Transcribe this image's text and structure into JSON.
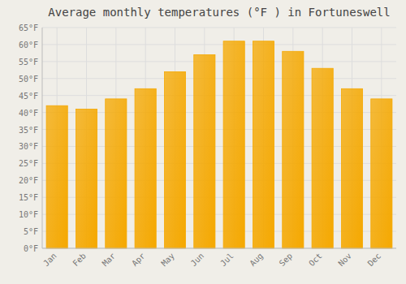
{
  "chart_data": {
    "type": "bar",
    "title": "Average monthly temperatures (°F ) in Fortuneswell",
    "categories": [
      "Jan",
      "Feb",
      "Mar",
      "Apr",
      "May",
      "Jun",
      "Jul",
      "Aug",
      "Sep",
      "Oct",
      "Nov",
      "Dec"
    ],
    "values": [
      42,
      41,
      44,
      47,
      52,
      57,
      61,
      61,
      58,
      53,
      47,
      44
    ],
    "color": "#F5A800",
    "ylim": [
      0,
      65
    ],
    "yticks": [
      {
        "value": 0,
        "label": "0°F"
      },
      {
        "value": 5,
        "label": "5°F"
      },
      {
        "value": 10,
        "label": "10°F"
      },
      {
        "value": 15,
        "label": "15°F"
      },
      {
        "value": 20,
        "label": "20°F"
      },
      {
        "value": 25,
        "label": "25°F"
      },
      {
        "value": 30,
        "label": "30°F"
      },
      {
        "value": 35,
        "label": "35°F"
      },
      {
        "value": 40,
        "label": "40°F"
      },
      {
        "value": 45,
        "label": "45°F"
      },
      {
        "value": 50,
        "label": "50°F"
      },
      {
        "value": 55,
        "label": "55°F"
      },
      {
        "value": 60,
        "label": "60°F"
      },
      {
        "value": 65,
        "label": "65°F"
      }
    ],
    "grid": true
  }
}
